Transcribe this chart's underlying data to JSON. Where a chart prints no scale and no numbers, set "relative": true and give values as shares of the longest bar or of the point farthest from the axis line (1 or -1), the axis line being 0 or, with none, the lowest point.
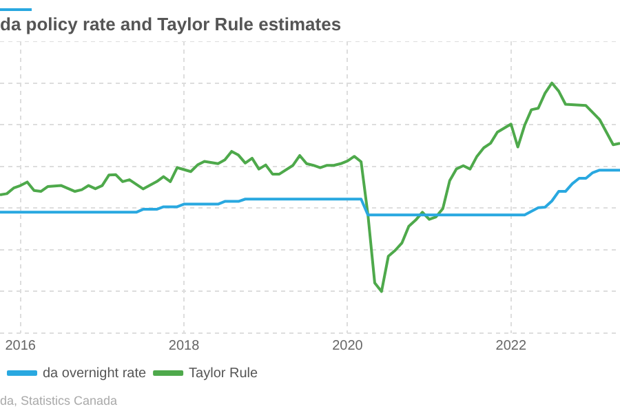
{
  "chart_data": {
    "type": "line",
    "title": "da policy rate and Taylor Rule estimates",
    "relative": true,
    "grid": true,
    "legend": "bottom left",
    "marker": "none",
    "line_style": "solid",
    "xlim": [
      "2015-10",
      "2023-05"
    ],
    "xticks": [
      "2016",
      "2018",
      "2020",
      "2022"
    ],
    "annotations": [
      "da, Statistics Canada"
    ],
    "series": [
      {
        "name": "da overnight rate",
        "color": "#29a8e0",
        "x": [
          "2015-10",
          "2017-06",
          "2017-07",
          "2017-09",
          "2017-10",
          "2017-12",
          "2018-01",
          "2018-06",
          "2018-07",
          "2018-09",
          "2018-10",
          "2020-03",
          "2020-04",
          "2022-03",
          "2022-05",
          "2022-06",
          "2022-07",
          "2022-08",
          "2022-09",
          "2022-10",
          "2022-11",
          "2022-12",
          "2023-01",
          "2023-02",
          "2023-05"
        ],
        "values": [
          0.38,
          0.38,
          0.394,
          0.394,
          0.406,
          0.406,
          0.419,
          0.419,
          0.432,
          0.432,
          0.443,
          0.443,
          0.367,
          0.367,
          0.402,
          0.404,
          0.434,
          0.48,
          0.48,
          0.517,
          0.543,
          0.543,
          0.57,
          0.582,
          0.582
        ]
      },
      {
        "name": "Taylor Rule",
        "color": "#4ea94b",
        "x": [
          "2015-10",
          "2015-11",
          "2015-12",
          "2016-01",
          "2016-02",
          "2016-03",
          "2016-04",
          "2016-05",
          "2016-07",
          "2016-09",
          "2016-10",
          "2016-11",
          "2016-12",
          "2017-01",
          "2017-02",
          "2017-03",
          "2017-04",
          "2017-05",
          "2017-07",
          "2017-09",
          "2017-10",
          "2017-11",
          "2017-12",
          "2018-02",
          "2018-03",
          "2018-04",
          "2018-06",
          "2018-07",
          "2018-08",
          "2018-09",
          "2018-10",
          "2018-11",
          "2018-12",
          "2019-01",
          "2019-02",
          "2019-03",
          "2019-05",
          "2019-06",
          "2019-07",
          "2019-08",
          "2019-09",
          "2019-10",
          "2019-11",
          "2019-12",
          "2020-01",
          "2020-02",
          "2020-03",
          "2020-04",
          "2020-05",
          "2020-06",
          "2020-07",
          "2020-08",
          "2020-09",
          "2020-10",
          "2020-11",
          "2020-12",
          "2021-01",
          "2021-02",
          "2021-03",
          "2021-04",
          "2021-05",
          "2021-06",
          "2021-07",
          "2021-08",
          "2021-09",
          "2021-10",
          "2021-11",
          "2022-01",
          "2022-02",
          "2022-03",
          "2022-04",
          "2022-05",
          "2022-06",
          "2022-07",
          "2022-08",
          "2022-09",
          "2022-12",
          "2023-02",
          "2023-04",
          "2023-05"
        ],
        "values": [
          0.464,
          0.469,
          0.496,
          0.508,
          0.525,
          0.484,
          0.48,
          0.503,
          0.508,
          0.48,
          0.488,
          0.508,
          0.493,
          0.508,
          0.559,
          0.56,
          0.527,
          0.536,
          0.492,
          0.527,
          0.551,
          0.527,
          0.594,
          0.575,
          0.607,
          0.624,
          0.613,
          0.631,
          0.672,
          0.654,
          0.616,
          0.639,
          0.587,
          0.607,
          0.563,
          0.563,
          0.605,
          0.652,
          0.613,
          0.605,
          0.594,
          0.605,
          0.605,
          0.613,
          0.626,
          0.648,
          0.622,
          0.369,
          0.041,
          0,
          0.169,
          0.197,
          0.233,
          0.313,
          0.342,
          0.38,
          0.346,
          0.358,
          0.398,
          0.531,
          0.588,
          0.603,
          0.587,
          0.648,
          0.689,
          0.711,
          0.764,
          0.803,
          0.693,
          0.797,
          0.872,
          0.879,
          0.951,
          1,
          0.961,
          0.898,
          0.892,
          0.825,
          0.704,
          0.711
        ]
      }
    ]
  }
}
